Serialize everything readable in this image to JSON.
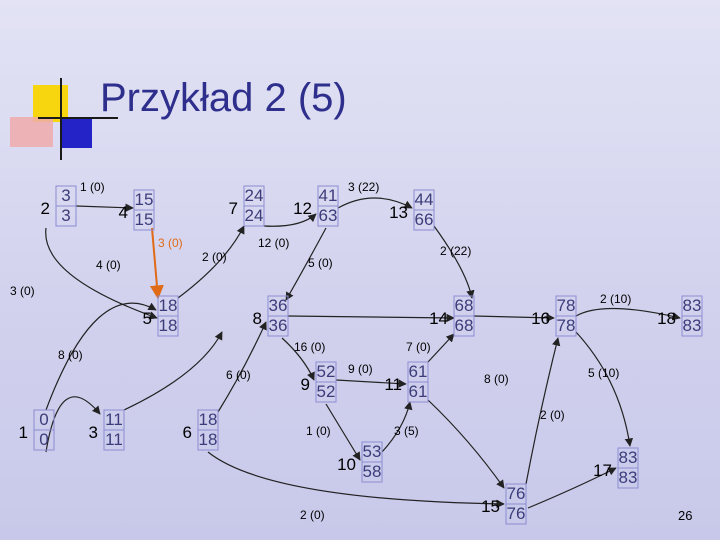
{
  "title": "Przykład 2 (5)",
  "page_number": "26",
  "colors": {
    "background": "#d2d2ee",
    "title": "#2e2e8c",
    "edge": "#222222",
    "critical_edge": "#e06a16",
    "node_box": "#8c8cd2",
    "times_text": "#3c3c7a",
    "deco_yellow": "#f7d50f",
    "deco_blue": "#2323c8",
    "deco_pink": "#f0aaaa"
  },
  "nodes": [
    {
      "id": "1",
      "earliest": "0",
      "latest": "0"
    },
    {
      "id": "2",
      "earliest": "3",
      "latest": "3"
    },
    {
      "id": "3",
      "earliest": "11",
      "latest": "11"
    },
    {
      "id": "4",
      "earliest": "15",
      "latest": "15"
    },
    {
      "id": "5",
      "earliest": "18",
      "latest": "18"
    },
    {
      "id": "6",
      "earliest": "18",
      "latest": "18"
    },
    {
      "id": "7",
      "earliest": "24",
      "latest": "24"
    },
    {
      "id": "8",
      "earliest": "36",
      "latest": "36"
    },
    {
      "id": "9",
      "earliest": "52",
      "latest": "52"
    },
    {
      "id": "10",
      "earliest": "53",
      "latest": "58"
    },
    {
      "id": "11",
      "earliest": "61",
      "latest": "61"
    },
    {
      "id": "12",
      "earliest": "41",
      "latest": "63"
    },
    {
      "id": "13",
      "earliest": "44",
      "latest": "66"
    },
    {
      "id": "14",
      "earliest": "68",
      "latest": "68"
    },
    {
      "id": "15",
      "earliest": "76",
      "latest": "76"
    },
    {
      "id": "16",
      "earliest": "78",
      "latest": "78"
    },
    {
      "id": "17",
      "earliest": "83",
      "latest": "83"
    },
    {
      "id": "18",
      "earliest": "83",
      "latest": "83"
    }
  ],
  "edges": [
    {
      "from": "2",
      "to": "4",
      "label": "1 (0)",
      "critical": false
    },
    {
      "from": "2",
      "to": "5",
      "label": "3 (0)",
      "critical": false
    },
    {
      "from": "4",
      "to": "5",
      "label": "3 (0)",
      "critical": true
    },
    {
      "from": "1",
      "to": "5",
      "label": "4 (0)",
      "critical": false
    },
    {
      "from": "5",
      "to": "7",
      "label": "2 (0)",
      "critical": false
    },
    {
      "from": "7",
      "to": "12",
      "label": "12 (0)",
      "critical": false
    },
    {
      "from": "12",
      "to": "13",
      "label": "3 (22)",
      "critical": false
    },
    {
      "from": "13",
      "to": "14",
      "label": "2 (22)",
      "critical": false
    },
    {
      "from": "12",
      "to": "8",
      "label": "5 (0)",
      "critical": false
    },
    {
      "from": "1",
      "to": "3",
      "label": "8 (0)",
      "critical": false
    },
    {
      "from": "3",
      "to": "6",
      "label": "6 (0)",
      "critical": false
    },
    {
      "from": "6",
      "to": "8",
      "label": "",
      "critical": false
    },
    {
      "from": "8",
      "to": "14",
      "label": "16 (0)",
      "critical": false
    },
    {
      "from": "8",
      "to": "9",
      "label": "",
      "critical": false
    },
    {
      "from": "9",
      "to": "11",
      "label": "9 (0)",
      "critical": false
    },
    {
      "from": "11",
      "to": "14",
      "label": "7 (0)",
      "critical": false
    },
    {
      "from": "11",
      "to": "15",
      "label": "8 (0)",
      "critical": false
    },
    {
      "from": "9",
      "to": "10",
      "label": "1 (0)",
      "critical": false
    },
    {
      "from": "10",
      "to": "11",
      "label": "3 (5)",
      "critical": false
    },
    {
      "from": "14",
      "to": "16",
      "label": "",
      "critical": false
    },
    {
      "from": "16",
      "to": "18",
      "label": "2 (10)",
      "critical": false
    },
    {
      "from": "15",
      "to": "16",
      "label": "",
      "critical": false
    },
    {
      "from": "15",
      "to": "17",
      "label": "2 (0)",
      "critical": false
    },
    {
      "from": "16",
      "to": "17",
      "label": "5 (10)",
      "critical": false
    },
    {
      "from": "6",
      "to": "15",
      "label": "2 (0)",
      "critical": false
    }
  ]
}
